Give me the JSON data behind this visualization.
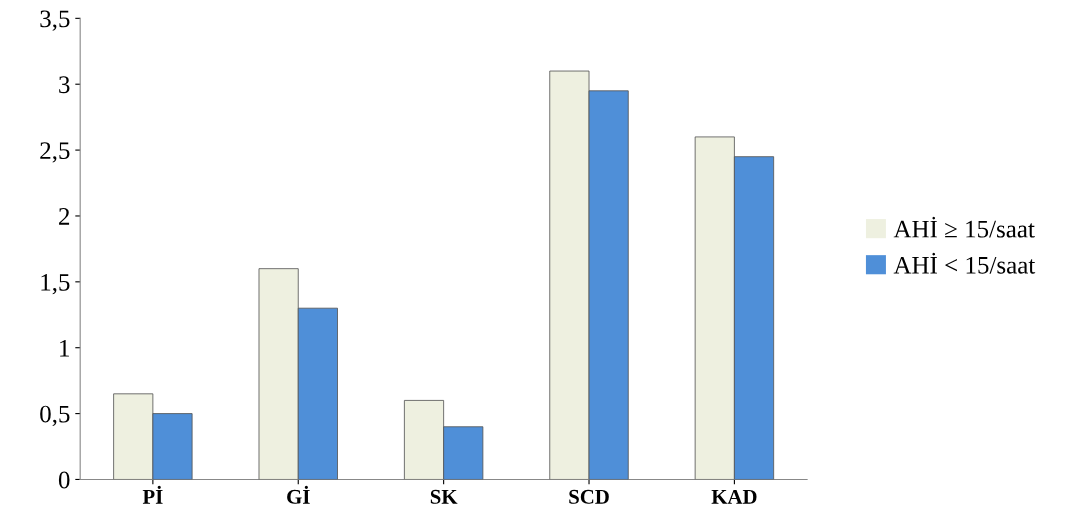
{
  "chart_data": {
    "type": "bar",
    "categories": [
      "Pİ",
      "Gİ",
      "SK",
      "SCD",
      "KAD"
    ],
    "series": [
      {
        "name": "AHİ ≥ 15/saat",
        "color": "#eef0e0",
        "values": [
          0.65,
          1.6,
          0.6,
          3.1,
          2.6
        ]
      },
      {
        "name": "AHİ < 15/saat",
        "color": "#4f8fd8",
        "values": [
          0.5,
          1.3,
          0.4,
          2.95,
          2.45
        ]
      }
    ],
    "ylim": [
      0,
      3.5
    ],
    "yticks": [
      0,
      {
        "value": 0.5,
        "label": "0,5"
      },
      1,
      {
        "value": 1.5,
        "label": "1,5"
      },
      2,
      {
        "value": 2.5,
        "label": "2,5"
      },
      3,
      {
        "value": 3.5,
        "label": "3,5"
      }
    ],
    "grid": false,
    "legend": "right"
  }
}
